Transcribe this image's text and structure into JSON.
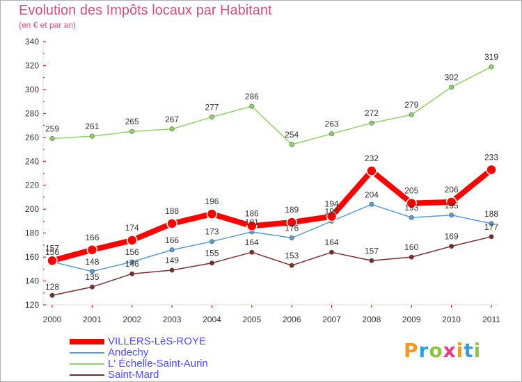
{
  "title": "Evolution des Impôts locaux par Habitant",
  "subtitle": "(en € et par an)",
  "logo": {
    "text": "Proxiti",
    "letters": [
      {
        "ch": "P",
        "color": "#f59a1e"
      },
      {
        "ch": "r",
        "color": "#2aa0e0"
      },
      {
        "ch": "o",
        "color": "#8cc43e"
      },
      {
        "ch": "x",
        "color": "#e63b8a"
      },
      {
        "ch": "i",
        "color": "#f59a1e"
      },
      {
        "ch": "t",
        "color": "#2aa0e0"
      },
      {
        "ch": "i",
        "color": "#8cc43e"
      }
    ]
  },
  "chart_data": {
    "type": "line",
    "title": "Evolution des Impôts locaux par Habitant",
    "subtitle": "(en € et par an)",
    "xlabel": "",
    "ylabel": "",
    "categories": [
      "2000",
      "2001",
      "2002",
      "2003",
      "2004",
      "2005",
      "2006",
      "2007",
      "2008",
      "2009",
      "2010",
      "2011"
    ],
    "ylim": [
      120,
      340
    ],
    "yticks": [
      120,
      140,
      160,
      180,
      200,
      220,
      240,
      260,
      280,
      300,
      320,
      340
    ],
    "grid": false,
    "legend_position": "bottom-left",
    "series": [
      {
        "name": "VILLERS-LèS-ROYE",
        "color": "#ff0000",
        "style": "bold",
        "values": [
          157,
          166,
          174,
          188,
          196,
          186,
          189,
          194,
          232,
          205,
          206,
          233
        ]
      },
      {
        "name": "Andechy",
        "color": "#5b9bd5",
        "style": "normal",
        "values": [
          156,
          148,
          156,
          166,
          173,
          181,
          176,
          190,
          204,
          193,
          195,
          188
        ]
      },
      {
        "name": "L' Échelle-Saint-Aurin",
        "color": "#8fd16a",
        "style": "normal",
        "values": [
          259,
          261,
          265,
          267,
          277,
          286,
          254,
          263,
          272,
          279,
          302,
          319
        ]
      },
      {
        "name": "Saint-Mard",
        "color": "#7a2b2b",
        "style": "normal",
        "values": [
          128,
          135,
          146,
          149,
          155,
          164,
          153,
          164,
          157,
          160,
          169,
          177
        ]
      }
    ]
  }
}
